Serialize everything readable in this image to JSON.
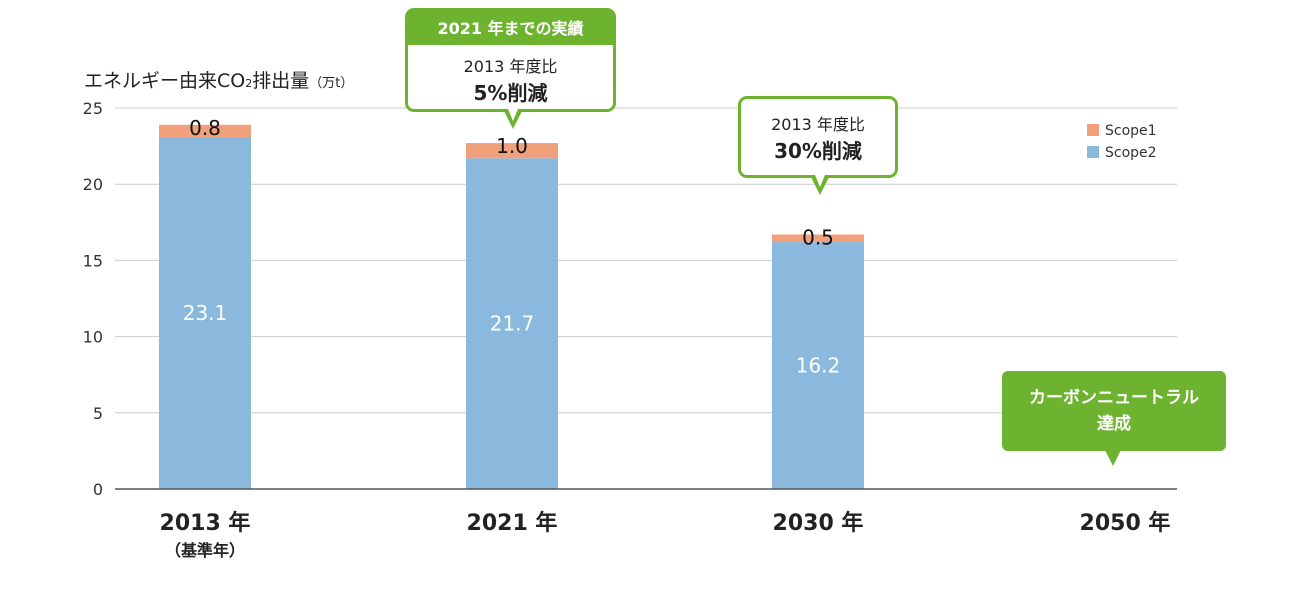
{
  "chart_data": {
    "type": "bar",
    "stacked": true,
    "ylabel_main": "エネルギー由来CO",
    "ylabel_sub": "2",
    "ylabel_tail": "排出量",
    "ylabel_unit": "（万t）",
    "ylim": [
      0,
      25
    ],
    "yticks": [
      "0",
      "5",
      "10",
      "15",
      "20",
      "25"
    ],
    "categories": [
      "2013 年",
      "2021 年",
      "2030 年",
      "2050 年"
    ],
    "category_sub": [
      "（基準年）",
      "",
      "",
      ""
    ],
    "series": [
      {
        "name": "Scope2",
        "color": "#8ab9dd",
        "values": [
          23.1,
          21.7,
          16.2,
          null
        ],
        "labels": [
          "23.1",
          "21.7",
          "16.2",
          ""
        ]
      },
      {
        "name": "Scope1",
        "color": "#f0a07a",
        "values": [
          0.8,
          1.0,
          0.5,
          null
        ],
        "labels": [
          "0.8",
          "1.0",
          "0.5",
          ""
        ]
      }
    ],
    "legend_position": "top-right",
    "grid": true
  },
  "annotations": {
    "c2021_head": "2021 年までの実績",
    "c2021_line1": "2013 年度比",
    "c2021_line2": "5%削減",
    "c2030_line1": "2013 年度比",
    "c2030_line2": "30%削減",
    "c2050_line1": "カーボンニュートラル",
    "c2050_line2": "達成"
  },
  "colors": {
    "accent_green": "#6db32f",
    "grid": "#cccccc",
    "axis": "#555555"
  }
}
